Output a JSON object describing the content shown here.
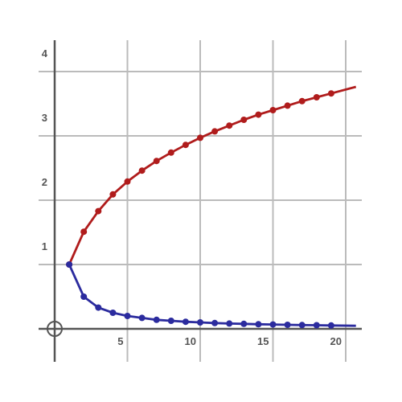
{
  "chart_data": {
    "type": "line",
    "xlim": [
      0,
      20
    ],
    "ylim": [
      0,
      4
    ],
    "x_ticks": [
      5,
      10,
      15,
      20
    ],
    "y_ticks": [
      1,
      2,
      3,
      4
    ],
    "x_tick_labels": [
      "5",
      "10",
      "15",
      "20"
    ],
    "y_tick_labels": [
      "1",
      "2",
      "3",
      "4"
    ],
    "grid": true,
    "origin_marker": "circle",
    "x": [
      1,
      2,
      3,
      4,
      5,
      6,
      7,
      8,
      9,
      10,
      11,
      12,
      13,
      14,
      15,
      16,
      17,
      18,
      19
    ],
    "series": [
      {
        "color": "#b01c1c",
        "values": [
          1,
          1.51,
          1.83,
          2.09,
          2.29,
          2.46,
          2.61,
          2.74,
          2.86,
          2.97,
          3.07,
          3.16,
          3.25,
          3.33,
          3.4,
          3.47,
          3.54,
          3.6,
          3.66
        ]
      },
      {
        "color": "#2b2b9e",
        "values": [
          1,
          0.5,
          0.33,
          0.25,
          0.2,
          0.17,
          0.14,
          0.125,
          0.11,
          0.1,
          0.09,
          0.083,
          0.077,
          0.071,
          0.067,
          0.0625,
          0.059,
          0.056,
          0.053
        ]
      }
    ],
    "line_extends_to_x": 20.7
  },
  "colors": {
    "grid": "#bbbbbb",
    "axis": "#555555"
  }
}
